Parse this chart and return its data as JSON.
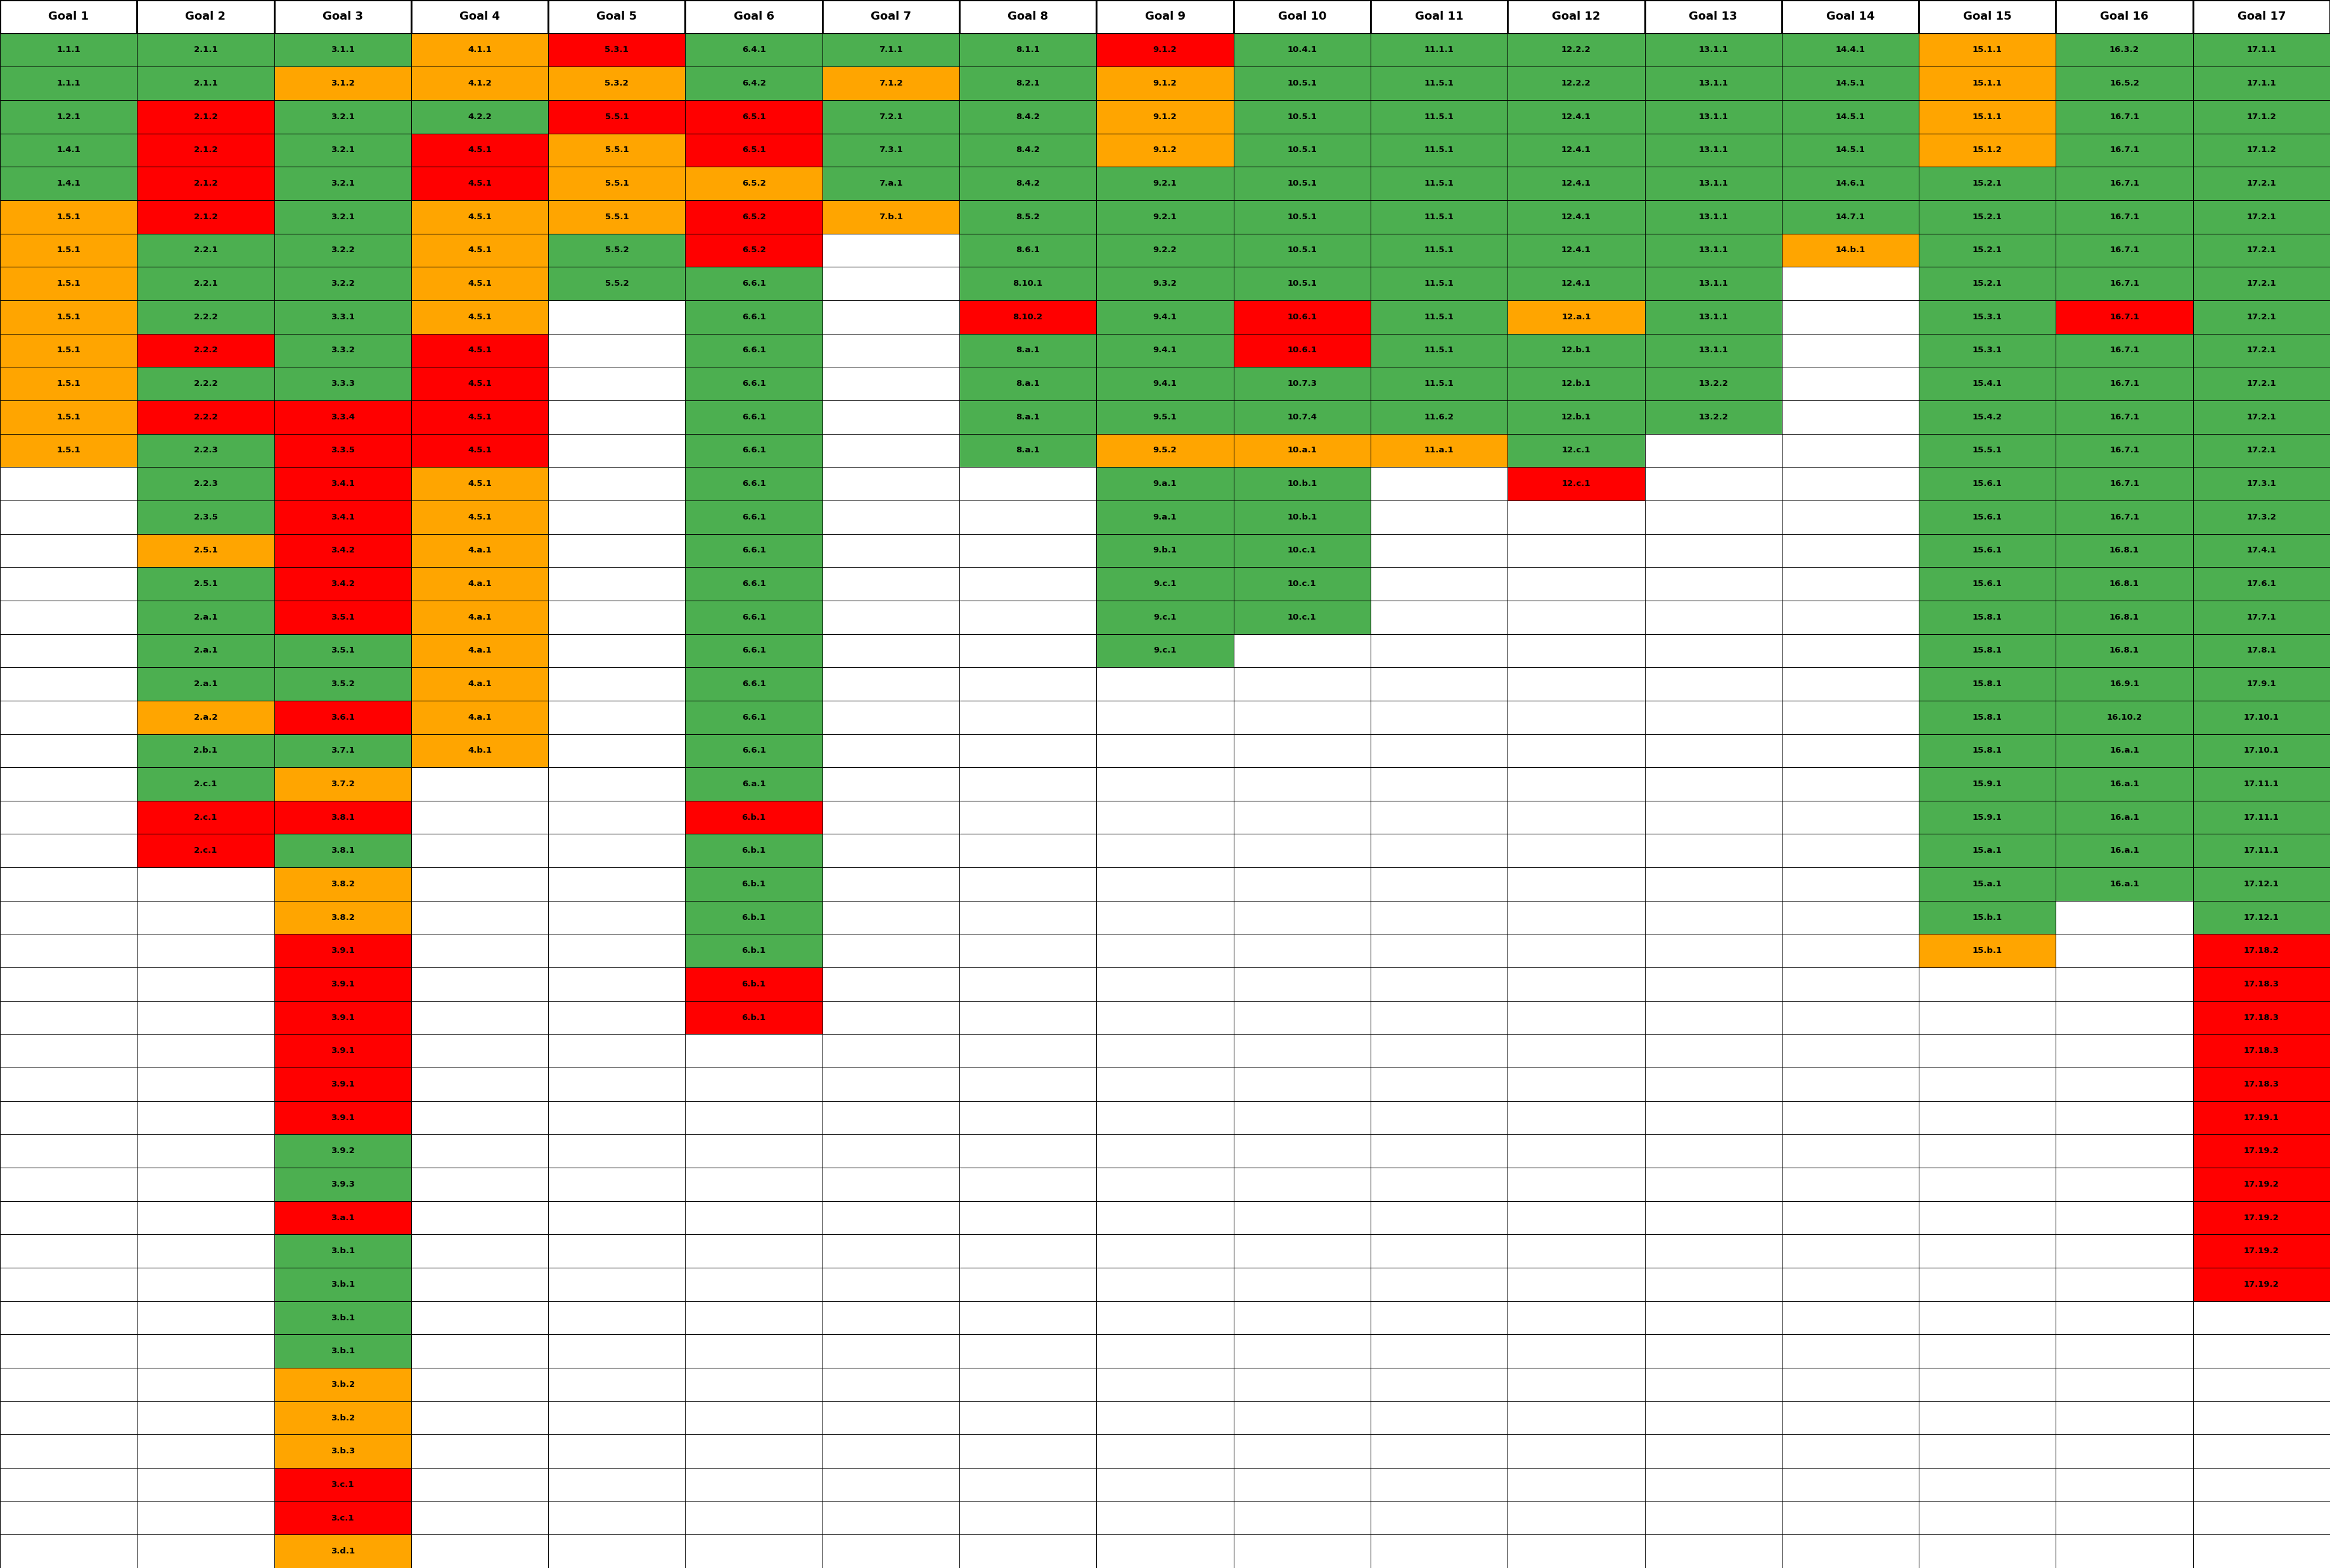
{
  "headers": [
    "Goal 1",
    "Goal 2",
    "Goal 3",
    "Goal 4",
    "Goal 5",
    "Goal 6",
    "Goal 7",
    "Goal 8",
    "Goal 9",
    "Goal 10",
    "Goal 11",
    "Goal 12",
    "Goal 13",
    "Goal 14",
    "Goal 15",
    "Goal 16",
    "Goal 17"
  ],
  "columns": {
    "Goal 1": [
      [
        "1.1.1",
        "G"
      ],
      [
        "1.1.1",
        "G"
      ],
      [
        "1.2.1",
        "G"
      ],
      [
        "1.4.1",
        "G"
      ],
      [
        "1.4.1",
        "G"
      ],
      [
        "1.5.1",
        "O"
      ],
      [
        "1.5.1",
        "O"
      ],
      [
        "1.5.1",
        "O"
      ],
      [
        "1.5.1",
        "O"
      ],
      [
        "1.5.1",
        "O"
      ],
      [
        "1.5.1",
        "O"
      ],
      [
        "1.5.1",
        "O"
      ],
      [
        "1.5.1",
        "O"
      ]
    ],
    "Goal 2": [
      [
        "2.1.1",
        "G"
      ],
      [
        "2.1.1",
        "G"
      ],
      [
        "2.1.2",
        "R"
      ],
      [
        "2.1.2",
        "R"
      ],
      [
        "2.1.2",
        "R"
      ],
      [
        "2.1.2",
        "R"
      ],
      [
        "2.2.1",
        "G"
      ],
      [
        "2.2.1",
        "G"
      ],
      [
        "2.2.2",
        "G"
      ],
      [
        "2.2.2",
        "R"
      ],
      [
        "2.2.2",
        "G"
      ],
      [
        "2.2.2",
        "R"
      ],
      [
        "2.2.3",
        "G"
      ],
      [
        "2.2.3",
        "G"
      ],
      [
        "2.3.5",
        "G"
      ],
      [
        "2.5.1",
        "O"
      ],
      [
        "2.5.1",
        "G"
      ],
      [
        "2.a.1",
        "G"
      ],
      [
        "2.a.1",
        "G"
      ],
      [
        "2.a.1",
        "G"
      ],
      [
        "2.a.2",
        "O"
      ],
      [
        "2.b.1",
        "G"
      ],
      [
        "2.c.1",
        "G"
      ],
      [
        "2.c.1",
        "R"
      ],
      [
        "2.c.1",
        "R"
      ]
    ],
    "Goal 3": [
      [
        "3.1.1",
        "G"
      ],
      [
        "3.1.2",
        "O"
      ],
      [
        "3.2.1",
        "G"
      ],
      [
        "3.2.1",
        "G"
      ],
      [
        "3.2.1",
        "G"
      ],
      [
        "3.2.1",
        "G"
      ],
      [
        "3.2.2",
        "G"
      ],
      [
        "3.2.2",
        "G"
      ],
      [
        "3.3.1",
        "G"
      ],
      [
        "3.3.2",
        "G"
      ],
      [
        "3.3.3",
        "G"
      ],
      [
        "3.3.4",
        "R"
      ],
      [
        "3.3.5",
        "R"
      ],
      [
        "3.4.1",
        "R"
      ],
      [
        "3.4.1",
        "R"
      ],
      [
        "3.4.2",
        "R"
      ],
      [
        "3.4.2",
        "R"
      ],
      [
        "3.5.1",
        "R"
      ],
      [
        "3.5.1",
        "G"
      ],
      [
        "3.5.2",
        "G"
      ],
      [
        "3.6.1",
        "R"
      ],
      [
        "3.7.1",
        "G"
      ],
      [
        "3.7.2",
        "O"
      ],
      [
        "3.8.1",
        "R"
      ],
      [
        "3.8.1",
        "G"
      ],
      [
        "3.8.2",
        "O"
      ],
      [
        "3.8.2",
        "O"
      ],
      [
        "3.9.1",
        "R"
      ],
      [
        "3.9.1",
        "R"
      ],
      [
        "3.9.1",
        "R"
      ],
      [
        "3.9.1",
        "R"
      ],
      [
        "3.9.1",
        "R"
      ],
      [
        "3.9.1",
        "R"
      ],
      [
        "3.9.2",
        "G"
      ],
      [
        "3.9.3",
        "G"
      ],
      [
        "3.a.1",
        "R"
      ],
      [
        "3.b.1",
        "G"
      ],
      [
        "3.b.1",
        "G"
      ],
      [
        "3.b.1",
        "G"
      ],
      [
        "3.b.1",
        "G"
      ],
      [
        "3.b.2",
        "O"
      ],
      [
        "3.b.2",
        "O"
      ],
      [
        "3.b.3",
        "O"
      ],
      [
        "3.c.1",
        "R"
      ],
      [
        "3.c.1",
        "R"
      ],
      [
        "3.d.1",
        "O"
      ]
    ],
    "Goal 4": [
      [
        "4.1.1",
        "O"
      ],
      [
        "4.1.2",
        "O"
      ],
      [
        "4.2.2",
        "G"
      ],
      [
        "4.5.1",
        "R"
      ],
      [
        "4.5.1",
        "R"
      ],
      [
        "4.5.1",
        "O"
      ],
      [
        "4.5.1",
        "O"
      ],
      [
        "4.5.1",
        "O"
      ],
      [
        "4.5.1",
        "O"
      ],
      [
        "4.5.1",
        "R"
      ],
      [
        "4.5.1",
        "R"
      ],
      [
        "4.5.1",
        "R"
      ],
      [
        "4.5.1",
        "R"
      ],
      [
        "4.5.1",
        "O"
      ],
      [
        "4.5.1",
        "O"
      ],
      [
        "4.a.1",
        "O"
      ],
      [
        "4.a.1",
        "O"
      ],
      [
        "4.a.1",
        "O"
      ],
      [
        "4.a.1",
        "O"
      ],
      [
        "4.a.1",
        "O"
      ],
      [
        "4.a.1",
        "O"
      ],
      [
        "4.b.1",
        "O"
      ]
    ],
    "Goal 5": [
      [
        "5.3.1",
        "R"
      ],
      [
        "5.3.2",
        "O"
      ],
      [
        "5.5.1",
        "R"
      ],
      [
        "5.5.1",
        "O"
      ],
      [
        "5.5.1",
        "O"
      ],
      [
        "5.5.1",
        "O"
      ],
      [
        "5.5.2",
        "G"
      ],
      [
        "5.5.2",
        "G"
      ]
    ],
    "Goal 6": [
      [
        "6.4.1",
        "G"
      ],
      [
        "6.4.2",
        "G"
      ],
      [
        "6.5.1",
        "R"
      ],
      [
        "6.5.1",
        "R"
      ],
      [
        "6.5.2",
        "O"
      ],
      [
        "6.5.2",
        "R"
      ],
      [
        "6.5.2",
        "R"
      ],
      [
        "6.6.1",
        "G"
      ],
      [
        "6.6.1",
        "G"
      ],
      [
        "6.6.1",
        "G"
      ],
      [
        "6.6.1",
        "G"
      ],
      [
        "6.6.1",
        "G"
      ],
      [
        "6.6.1",
        "G"
      ],
      [
        "6.6.1",
        "G"
      ],
      [
        "6.6.1",
        "G"
      ],
      [
        "6.6.1",
        "G"
      ],
      [
        "6.6.1",
        "G"
      ],
      [
        "6.6.1",
        "G"
      ],
      [
        "6.6.1",
        "G"
      ],
      [
        "6.6.1",
        "G"
      ],
      [
        "6.6.1",
        "G"
      ],
      [
        "6.6.1",
        "G"
      ],
      [
        "6.a.1",
        "G"
      ],
      [
        "6.b.1",
        "R"
      ],
      [
        "6.b.1",
        "G"
      ],
      [
        "6.b.1",
        "G"
      ],
      [
        "6.b.1",
        "G"
      ],
      [
        "6.b.1",
        "G"
      ],
      [
        "6.b.1",
        "R"
      ],
      [
        "6.b.1",
        "R"
      ]
    ],
    "Goal 7": [
      [
        "7.1.1",
        "G"
      ],
      [
        "7.1.2",
        "O"
      ],
      [
        "7.2.1",
        "G"
      ],
      [
        "7.3.1",
        "G"
      ],
      [
        "7.a.1",
        "G"
      ],
      [
        "7.b.1",
        "O"
      ]
    ],
    "Goal 8": [
      [
        "8.1.1",
        "G"
      ],
      [
        "8.2.1",
        "G"
      ],
      [
        "8.4.2",
        "G"
      ],
      [
        "8.4.2",
        "G"
      ],
      [
        "8.4.2",
        "G"
      ],
      [
        "8.5.2",
        "G"
      ],
      [
        "8.6.1",
        "G"
      ],
      [
        "8.10.1",
        "G"
      ],
      [
        "8.10.2",
        "R"
      ],
      [
        "8.a.1",
        "G"
      ],
      [
        "8.a.1",
        "G"
      ],
      [
        "8.a.1",
        "G"
      ],
      [
        "8.a.1",
        "G"
      ]
    ],
    "Goal 9": [
      [
        "9.1.2",
        "R"
      ],
      [
        "9.1.2",
        "O"
      ],
      [
        "9.1.2",
        "O"
      ],
      [
        "9.1.2",
        "O"
      ],
      [
        "9.2.1",
        "G"
      ],
      [
        "9.2.1",
        "G"
      ],
      [
        "9.2.2",
        "G"
      ],
      [
        "9.3.2",
        "G"
      ],
      [
        "9.4.1",
        "G"
      ],
      [
        "9.4.1",
        "G"
      ],
      [
        "9.4.1",
        "G"
      ],
      [
        "9.5.1",
        "G"
      ],
      [
        "9.5.2",
        "O"
      ],
      [
        "9.a.1",
        "G"
      ],
      [
        "9.a.1",
        "G"
      ],
      [
        "9.b.1",
        "G"
      ],
      [
        "9.c.1",
        "G"
      ],
      [
        "9.c.1",
        "G"
      ],
      [
        "9.c.1",
        "G"
      ]
    ],
    "Goal 10": [
      [
        "10.4.1",
        "G"
      ],
      [
        "10.5.1",
        "G"
      ],
      [
        "10.5.1",
        "G"
      ],
      [
        "10.5.1",
        "G"
      ],
      [
        "10.5.1",
        "G"
      ],
      [
        "10.5.1",
        "G"
      ],
      [
        "10.5.1",
        "G"
      ],
      [
        "10.5.1",
        "G"
      ],
      [
        "10.6.1",
        "R"
      ],
      [
        "10.6.1",
        "R"
      ],
      [
        "10.7.3",
        "G"
      ],
      [
        "10.7.4",
        "G"
      ],
      [
        "10.a.1",
        "O"
      ],
      [
        "10.b.1",
        "G"
      ],
      [
        "10.b.1",
        "G"
      ],
      [
        "10.c.1",
        "G"
      ],
      [
        "10.c.1",
        "G"
      ],
      [
        "10.c.1",
        "G"
      ]
    ],
    "Goal 11": [
      [
        "11.1.1",
        "G"
      ],
      [
        "11.5.1",
        "G"
      ],
      [
        "11.5.1",
        "G"
      ],
      [
        "11.5.1",
        "G"
      ],
      [
        "11.5.1",
        "G"
      ],
      [
        "11.5.1",
        "G"
      ],
      [
        "11.5.1",
        "G"
      ],
      [
        "11.5.1",
        "G"
      ],
      [
        "11.5.1",
        "G"
      ],
      [
        "11.5.1",
        "G"
      ],
      [
        "11.5.1",
        "G"
      ],
      [
        "11.6.2",
        "G"
      ],
      [
        "11.a.1",
        "O"
      ]
    ],
    "Goal 12": [
      [
        "12.2.2",
        "G"
      ],
      [
        "12.2.2",
        "G"
      ],
      [
        "12.4.1",
        "G"
      ],
      [
        "12.4.1",
        "G"
      ],
      [
        "12.4.1",
        "G"
      ],
      [
        "12.4.1",
        "G"
      ],
      [
        "12.4.1",
        "G"
      ],
      [
        "12.4.1",
        "G"
      ],
      [
        "12.a.1",
        "O"
      ],
      [
        "12.b.1",
        "G"
      ],
      [
        "12.b.1",
        "G"
      ],
      [
        "12.b.1",
        "G"
      ],
      [
        "12.c.1",
        "G"
      ],
      [
        "12.c.1",
        "R"
      ]
    ],
    "Goal 13": [
      [
        "13.1.1",
        "G"
      ],
      [
        "13.1.1",
        "G"
      ],
      [
        "13.1.1",
        "G"
      ],
      [
        "13.1.1",
        "G"
      ],
      [
        "13.1.1",
        "G"
      ],
      [
        "13.1.1",
        "G"
      ],
      [
        "13.1.1",
        "G"
      ],
      [
        "13.1.1",
        "G"
      ],
      [
        "13.1.1",
        "G"
      ],
      [
        "13.1.1",
        "G"
      ],
      [
        "13.2.2",
        "G"
      ],
      [
        "13.2.2",
        "G"
      ]
    ],
    "Goal 14": [
      [
        "14.4.1",
        "G"
      ],
      [
        "14.5.1",
        "G"
      ],
      [
        "14.5.1",
        "G"
      ],
      [
        "14.5.1",
        "G"
      ],
      [
        "14.6.1",
        "G"
      ],
      [
        "14.7.1",
        "G"
      ],
      [
        "14.b.1",
        "O"
      ]
    ],
    "Goal 15": [
      [
        "15.1.1",
        "O"
      ],
      [
        "15.1.1",
        "O"
      ],
      [
        "15.1.1",
        "O"
      ],
      [
        "15.1.2",
        "O"
      ],
      [
        "15.2.1",
        "G"
      ],
      [
        "15.2.1",
        "G"
      ],
      [
        "15.2.1",
        "G"
      ],
      [
        "15.2.1",
        "G"
      ],
      [
        "15.3.1",
        "G"
      ],
      [
        "15.3.1",
        "G"
      ],
      [
        "15.4.1",
        "G"
      ],
      [
        "15.4.2",
        "G"
      ],
      [
        "15.5.1",
        "G"
      ],
      [
        "15.6.1",
        "G"
      ],
      [
        "15.6.1",
        "G"
      ],
      [
        "15.6.1",
        "G"
      ],
      [
        "15.6.1",
        "G"
      ],
      [
        "15.8.1",
        "G"
      ],
      [
        "15.8.1",
        "G"
      ],
      [
        "15.8.1",
        "G"
      ],
      [
        "15.8.1",
        "G"
      ],
      [
        "15.8.1",
        "G"
      ],
      [
        "15.9.1",
        "G"
      ],
      [
        "15.9.1",
        "G"
      ],
      [
        "15.a.1",
        "G"
      ],
      [
        "15.a.1",
        "G"
      ],
      [
        "15.b.1",
        "G"
      ],
      [
        "15.b.1",
        "O"
      ]
    ],
    "Goal 16": [
      [
        "16.3.2",
        "G"
      ],
      [
        "16.5.2",
        "G"
      ],
      [
        "16.7.1",
        "G"
      ],
      [
        "16.7.1",
        "G"
      ],
      [
        "16.7.1",
        "G"
      ],
      [
        "16.7.1",
        "G"
      ],
      [
        "16.7.1",
        "G"
      ],
      [
        "16.7.1",
        "G"
      ],
      [
        "16.7.1",
        "R"
      ],
      [
        "16.7.1",
        "G"
      ],
      [
        "16.7.1",
        "G"
      ],
      [
        "16.7.1",
        "G"
      ],
      [
        "16.7.1",
        "G"
      ],
      [
        "16.7.1",
        "G"
      ],
      [
        "16.7.1",
        "G"
      ],
      [
        "16.8.1",
        "G"
      ],
      [
        "16.8.1",
        "G"
      ],
      [
        "16.8.1",
        "G"
      ],
      [
        "16.8.1",
        "G"
      ],
      [
        "16.9.1",
        "G"
      ],
      [
        "16.10.2",
        "G"
      ],
      [
        "16.a.1",
        "G"
      ],
      [
        "16.a.1",
        "G"
      ],
      [
        "16.a.1",
        "G"
      ],
      [
        "16.a.1",
        "G"
      ],
      [
        "16.a.1",
        "G"
      ]
    ],
    "Goal 17": [
      [
        "17.1.1",
        "G"
      ],
      [
        "17.1.1",
        "G"
      ],
      [
        "17.1.2",
        "G"
      ],
      [
        "17.1.2",
        "G"
      ],
      [
        "17.2.1",
        "G"
      ],
      [
        "17.2.1",
        "G"
      ],
      [
        "17.2.1",
        "G"
      ],
      [
        "17.2.1",
        "G"
      ],
      [
        "17.2.1",
        "G"
      ],
      [
        "17.2.1",
        "G"
      ],
      [
        "17.2.1",
        "G"
      ],
      [
        "17.2.1",
        "G"
      ],
      [
        "17.2.1",
        "G"
      ],
      [
        "17.3.1",
        "G"
      ],
      [
        "17.3.2",
        "G"
      ],
      [
        "17.4.1",
        "G"
      ],
      [
        "17.6.1",
        "G"
      ],
      [
        "17.7.1",
        "G"
      ],
      [
        "17.8.1",
        "G"
      ],
      [
        "17.9.1",
        "G"
      ],
      [
        "17.10.1",
        "G"
      ],
      [
        "17.10.1",
        "G"
      ],
      [
        "17.11.1",
        "G"
      ],
      [
        "17.11.1",
        "G"
      ],
      [
        "17.11.1",
        "G"
      ],
      [
        "17.12.1",
        "G"
      ],
      [
        "17.12.1",
        "G"
      ],
      [
        "17.18.2",
        "R"
      ],
      [
        "17.18.3",
        "R"
      ],
      [
        "17.18.3",
        "R"
      ],
      [
        "17.18.3",
        "R"
      ],
      [
        "17.18.3",
        "R"
      ],
      [
        "17.19.1",
        "R"
      ],
      [
        "17.19.2",
        "R"
      ],
      [
        "17.19.2",
        "R"
      ],
      [
        "17.19.2",
        "R"
      ],
      [
        "17.19.2",
        "R"
      ],
      [
        "17.19.2",
        "R"
      ]
    ]
  },
  "colors": {
    "G": "#4CAF50",
    "O": "#FFA500",
    "R": "#FF0000",
    "W": "#FFFFFF"
  },
  "header_bg": "#FFFFFF",
  "header_text": "#000000",
  "border_color": "#000000",
  "cell_text_color": "#000000",
  "header_fontsize": 13,
  "cell_fontsize": 9.5
}
